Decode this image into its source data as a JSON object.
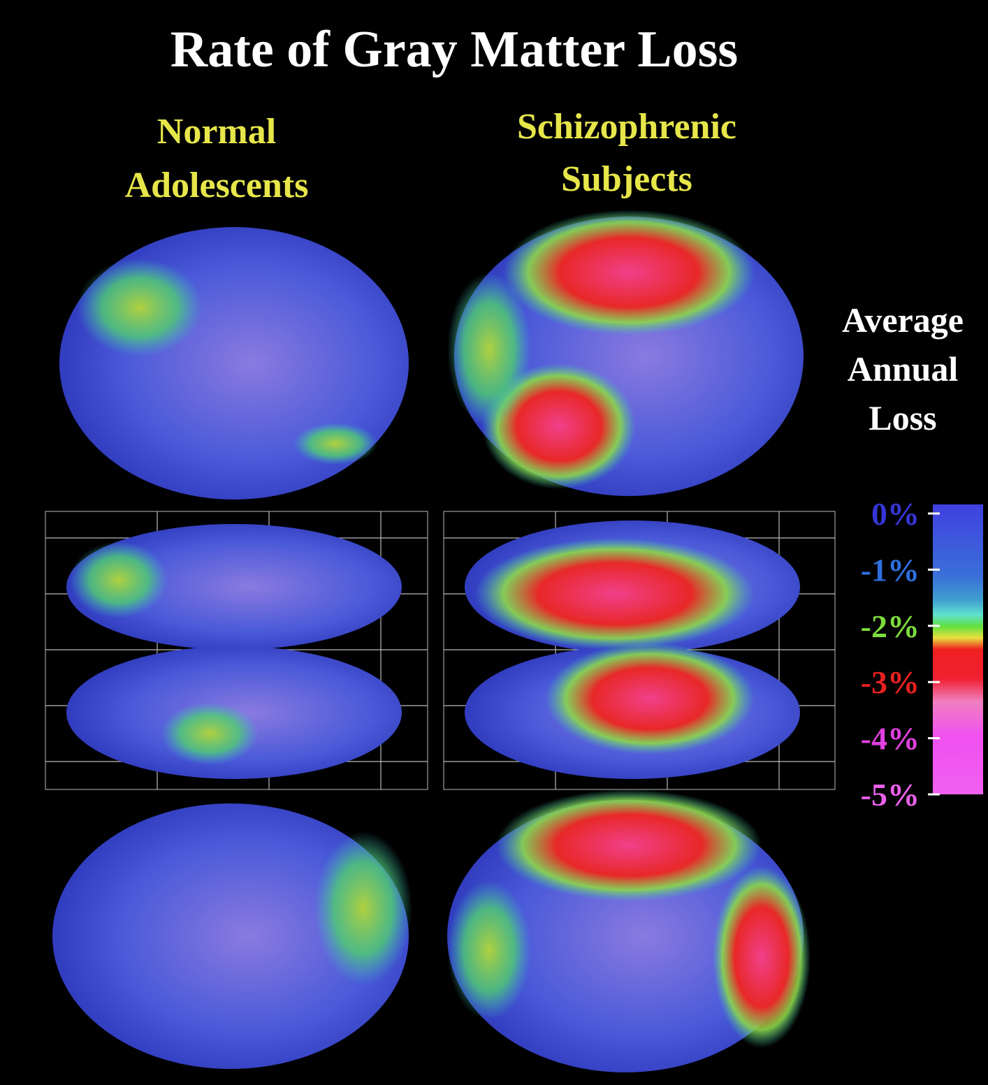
{
  "title": "Rate of Gray Matter Loss",
  "columns": [
    {
      "lines": [
        "Normal",
        "Adolescents"
      ]
    },
    {
      "lines": [
        "Schizophrenic",
        "Subjects"
      ]
    }
  ],
  "legend": {
    "title_lines": [
      "Average",
      "Annual",
      "Loss"
    ],
    "ticks": [
      {
        "label": "0%",
        "color": "#3535d8"
      },
      {
        "label": "-1%",
        "color": "#2f6fe0"
      },
      {
        "label": "-2%",
        "color": "#7ddc3c"
      },
      {
        "label": "-3%",
        "color": "#e82020"
      },
      {
        "label": "-4%",
        "color": "#e040e0"
      },
      {
        "label": "-5%",
        "color": "#e860e8"
      }
    ]
  }
}
